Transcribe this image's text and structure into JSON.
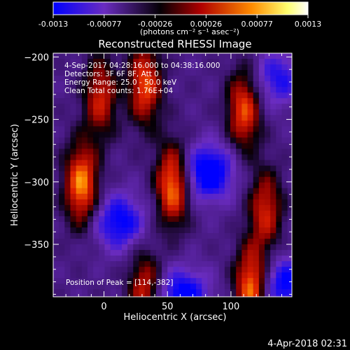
{
  "chart_data": {
    "type": "heatmap",
    "title": "Reconstructed RHESSI Image",
    "xlabel": "Heliocentric X (arcsec)",
    "ylabel": "Heliocentric Y (arcsec)",
    "xlim": [
      -40,
      148
    ],
    "ylim": [
      -392,
      -197
    ],
    "xticks": [
      0,
      50,
      100
    ],
    "yticks": [
      -200,
      -250,
      -300,
      -350
    ],
    "colorbar": {
      "range": [
        -0.0013,
        0.0013
      ],
      "ticks": [
        "-0.0013",
        "-0.00077",
        "-0.00026",
        "0.00026",
        "0.00077",
        "0.0013"
      ],
      "unit_label": "(photons cm⁻² s⁻¹ asec⁻²)",
      "colormap": [
        "#0000ff",
        "#7a2fa8",
        "#000000",
        "#c80000",
        "#ff8c00",
        "#ffff80",
        "#ffffff"
      ]
    },
    "annotations": {
      "time": "4-Sep-2017 04:28:16.000 to 04:38:16.000",
      "detectors": "Detectors: 3F 6F 8F, Att 0",
      "energy": "Energy Range: 25.0 - 50.0 keV",
      "clean": "Clean     Total counts: 1.76E+04",
      "peak": "Position of Peak = [114,-382]"
    },
    "sources": [
      {
        "x": -20,
        "y": -300,
        "value": 0.0013
      },
      {
        "x": -5,
        "y": -230,
        "value": 0.0009
      },
      {
        "x": 30,
        "y": -220,
        "value": 0.0011
      },
      {
        "x": 52,
        "y": -300,
        "value": 0.0013
      },
      {
        "x": 108,
        "y": -240,
        "value": 0.0011
      },
      {
        "x": 125,
        "y": -320,
        "value": 0.0009
      },
      {
        "x": 114,
        "y": -382,
        "value": 0.0013
      },
      {
        "x": 30,
        "y": -385,
        "value": 0.0009
      }
    ],
    "negative_regions": [
      {
        "x": 10,
        "y": -330,
        "value": -0.0009
      },
      {
        "x": 80,
        "y": -290,
        "value": -0.0011
      },
      {
        "x": 60,
        "y": -390,
        "value": -0.001
      },
      {
        "x": 140,
        "y": -380,
        "value": -0.0009
      },
      {
        "x": 135,
        "y": -215,
        "value": -0.0007
      }
    ]
  },
  "footer": {
    "date": "4-Apr-2018 02:31"
  }
}
